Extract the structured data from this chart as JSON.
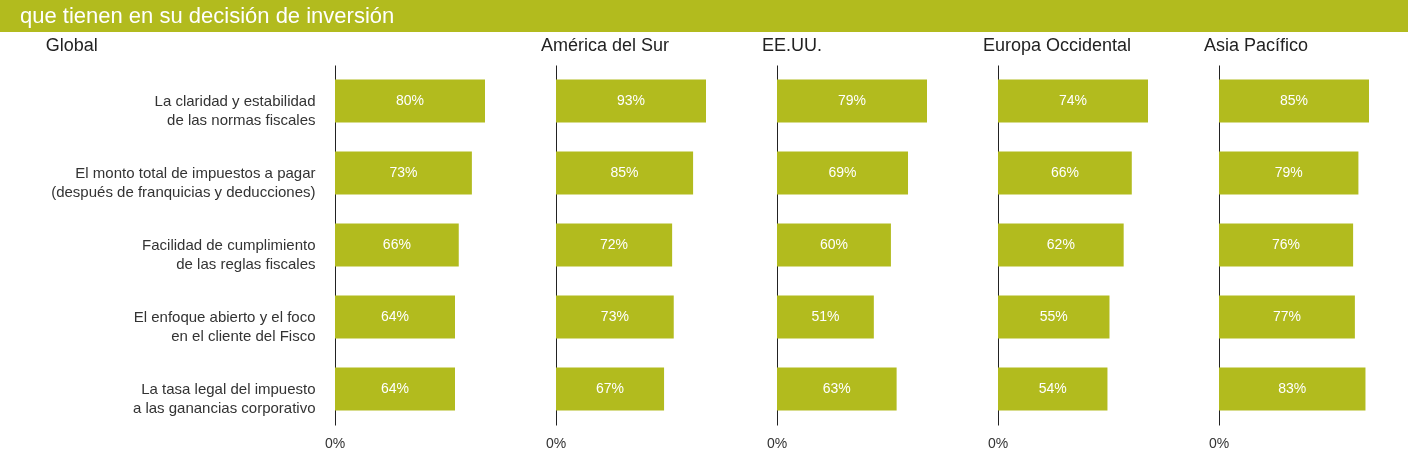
{
  "chart_data": [
    {
      "type": "other",
      "title": "que tienen en su decisión de inversión"
    },
    {
      "type": "bar",
      "orientation": "horizontal",
      "title": "Global",
      "categories": [
        "La claridad y estabilidad de las normas fiscales",
        "El monto total de impuestos a pagar (después de franquicias y deducciones)",
        "Facilidad de cumplimiento de las reglas fiscales",
        "El enfoque abierto y el foco en el cliente del Fisco",
        "La tasa legal del impuesto a las ganancias corporativo"
      ],
      "values": [
        80,
        73,
        66,
        64,
        64
      ],
      "value_labels": [
        "80%",
        "73%",
        "66%",
        "64%",
        "64%"
      ],
      "color": "#b2bb1e",
      "annotations": [
        "0%"
      ],
      "tick_labels": "y"
    },
    {
      "type": "bar",
      "orientation": "horizontal",
      "title": "América del Sur",
      "values": [
        93,
        85,
        72,
        73,
        67
      ],
      "value_labels": [
        "93%",
        "85%",
        "72%",
        "73%",
        "67%"
      ],
      "color": "#b2bb1e",
      "annotations": [
        "0%"
      ],
      "tick_labels": false
    },
    {
      "type": "bar",
      "orientation": "horizontal",
      "title": "EE.UU.",
      "values": [
        79,
        69,
        60,
        51,
        63
      ],
      "value_labels": [
        "79%",
        "69%",
        "60%",
        "51%",
        "63%"
      ],
      "color": "#b2bb1e",
      "annotations": [
        "0%"
      ],
      "tick_labels": false
    },
    {
      "type": "bar",
      "orientation": "horizontal",
      "title": "Europa Occidental",
      "values": [
        74,
        66,
        62,
        55,
        54
      ],
      "value_labels": [
        "74%",
        "66%",
        "62%",
        "55%",
        "54%"
      ],
      "color": "#b2bb1e",
      "annotations": [
        "0%"
      ],
      "tick_labels": false
    },
    {
      "type": "bar",
      "orientation": "horizontal",
      "title": "Asia Pacífico",
      "values": [
        85,
        79,
        76,
        77,
        83
      ],
      "value_labels": [
        "85%",
        "79%",
        "76%",
        "77%",
        "83%"
      ],
      "color": "#b2bb1e",
      "annotations": [
        "0%"
      ],
      "tick_labels": false
    }
  ]
}
